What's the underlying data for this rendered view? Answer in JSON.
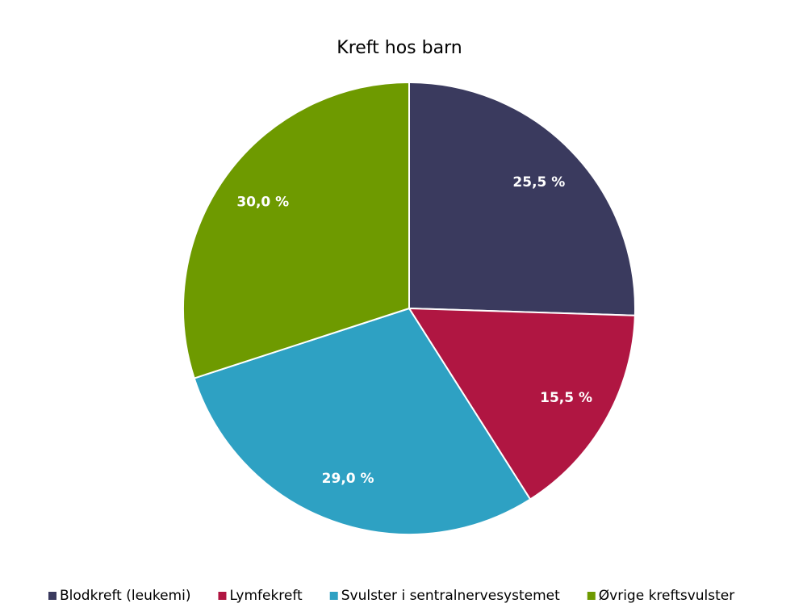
{
  "chart_data": {
    "type": "pie",
    "title": "Kreft hos barn",
    "categories": [
      "Blodkreft (leukemi)",
      "Lymfekreft",
      "Svulster i sentralnervesystemet",
      "Øvrige kreftsvulster"
    ],
    "values": [
      25.5,
      15.5,
      29.0,
      30.0
    ],
    "value_labels": [
      "25,5 %",
      "15,5 %",
      "29,0 %",
      "30,0 %"
    ],
    "colors": [
      "#3a3a5e",
      "#b01642",
      "#2ea1c3",
      "#6e9a00"
    ],
    "legend": "bottom"
  }
}
